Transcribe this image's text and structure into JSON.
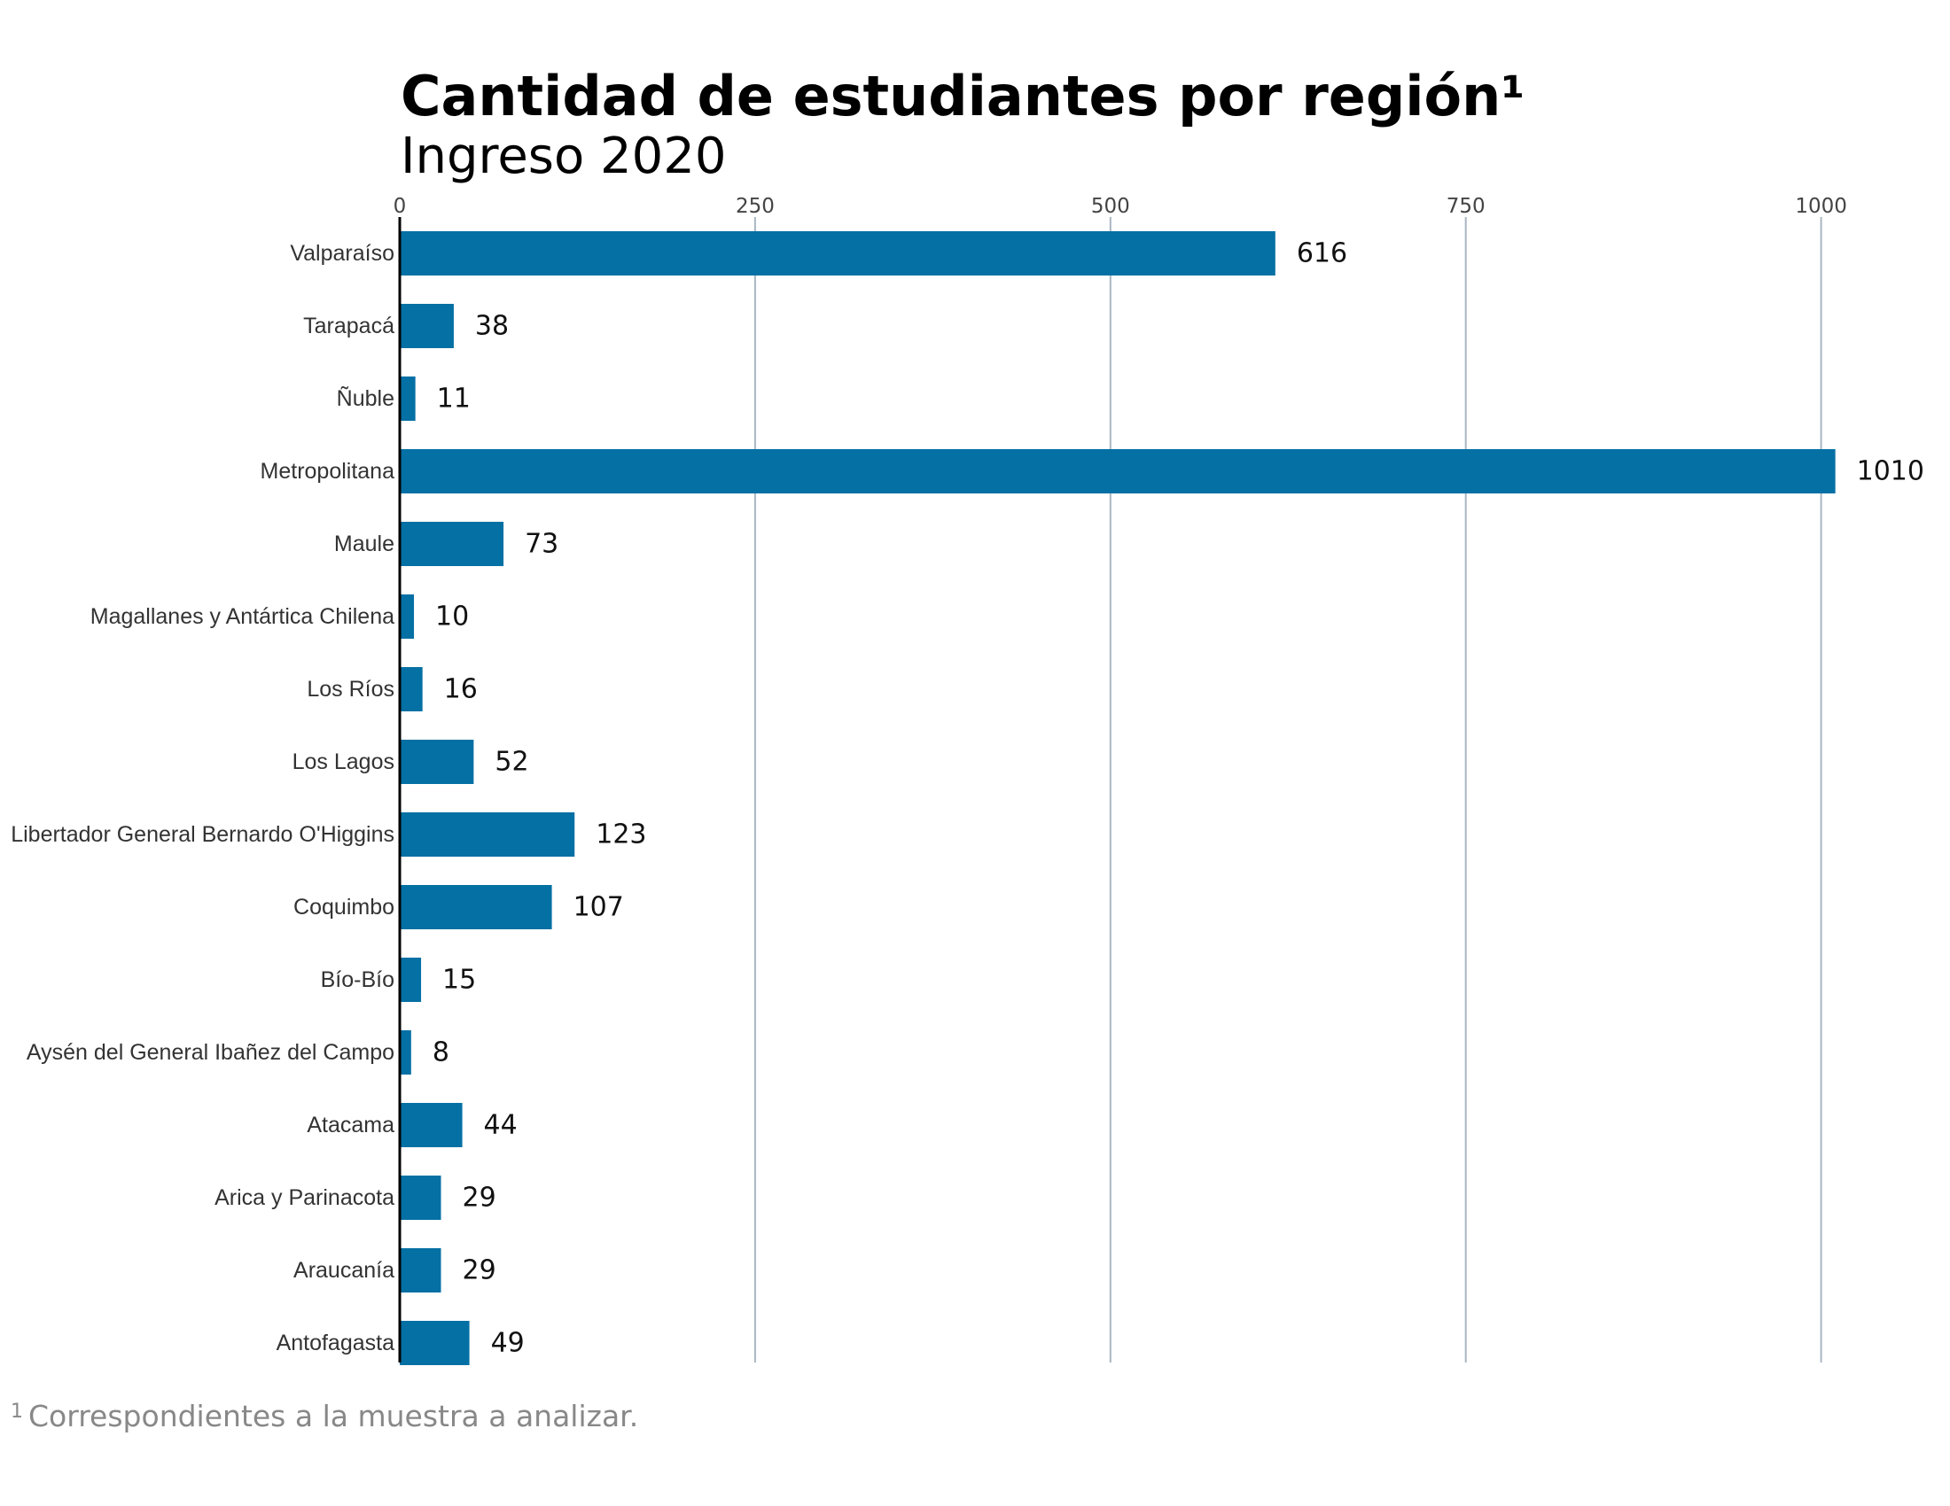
{
  "title": "Cantidad de estudiantes por región¹",
  "subtitle": "Ingreso 2020",
  "footnote": {
    "mark": "1",
    "text": "Correspondientes a la muestra a analizar."
  },
  "colors": {
    "bar": "#0570a4",
    "grid": "#a9b6c2",
    "axis": "#000000"
  },
  "chart_data": {
    "type": "bar",
    "orientation": "horizontal",
    "title": "Cantidad de estudiantes por región¹",
    "subtitle": "Ingreso 2020",
    "xlabel": "",
    "ylabel": "",
    "xlim": [
      0,
      1010
    ],
    "x_ticks": [
      0,
      250,
      500,
      750,
      1000
    ],
    "x_axis_position": "top",
    "grid": "vertical",
    "data_labels": true,
    "categories": [
      "Valparaíso",
      "Tarapacá",
      "Ñuble",
      "Metropolitana",
      "Maule",
      "Magallanes y Antártica Chilena",
      "Los Ríos",
      "Los Lagos",
      "Libertador General Bernardo O'Higgins",
      "Coquimbo",
      "Bío-Bío",
      "Aysén del General Ibañez del Campo",
      "Atacama",
      "Arica y Parinacota",
      "Araucanía",
      "Antofagasta"
    ],
    "values": [
      616,
      38,
      11,
      1010,
      73,
      10,
      16,
      52,
      123,
      107,
      15,
      8,
      44,
      29,
      29,
      49
    ]
  }
}
